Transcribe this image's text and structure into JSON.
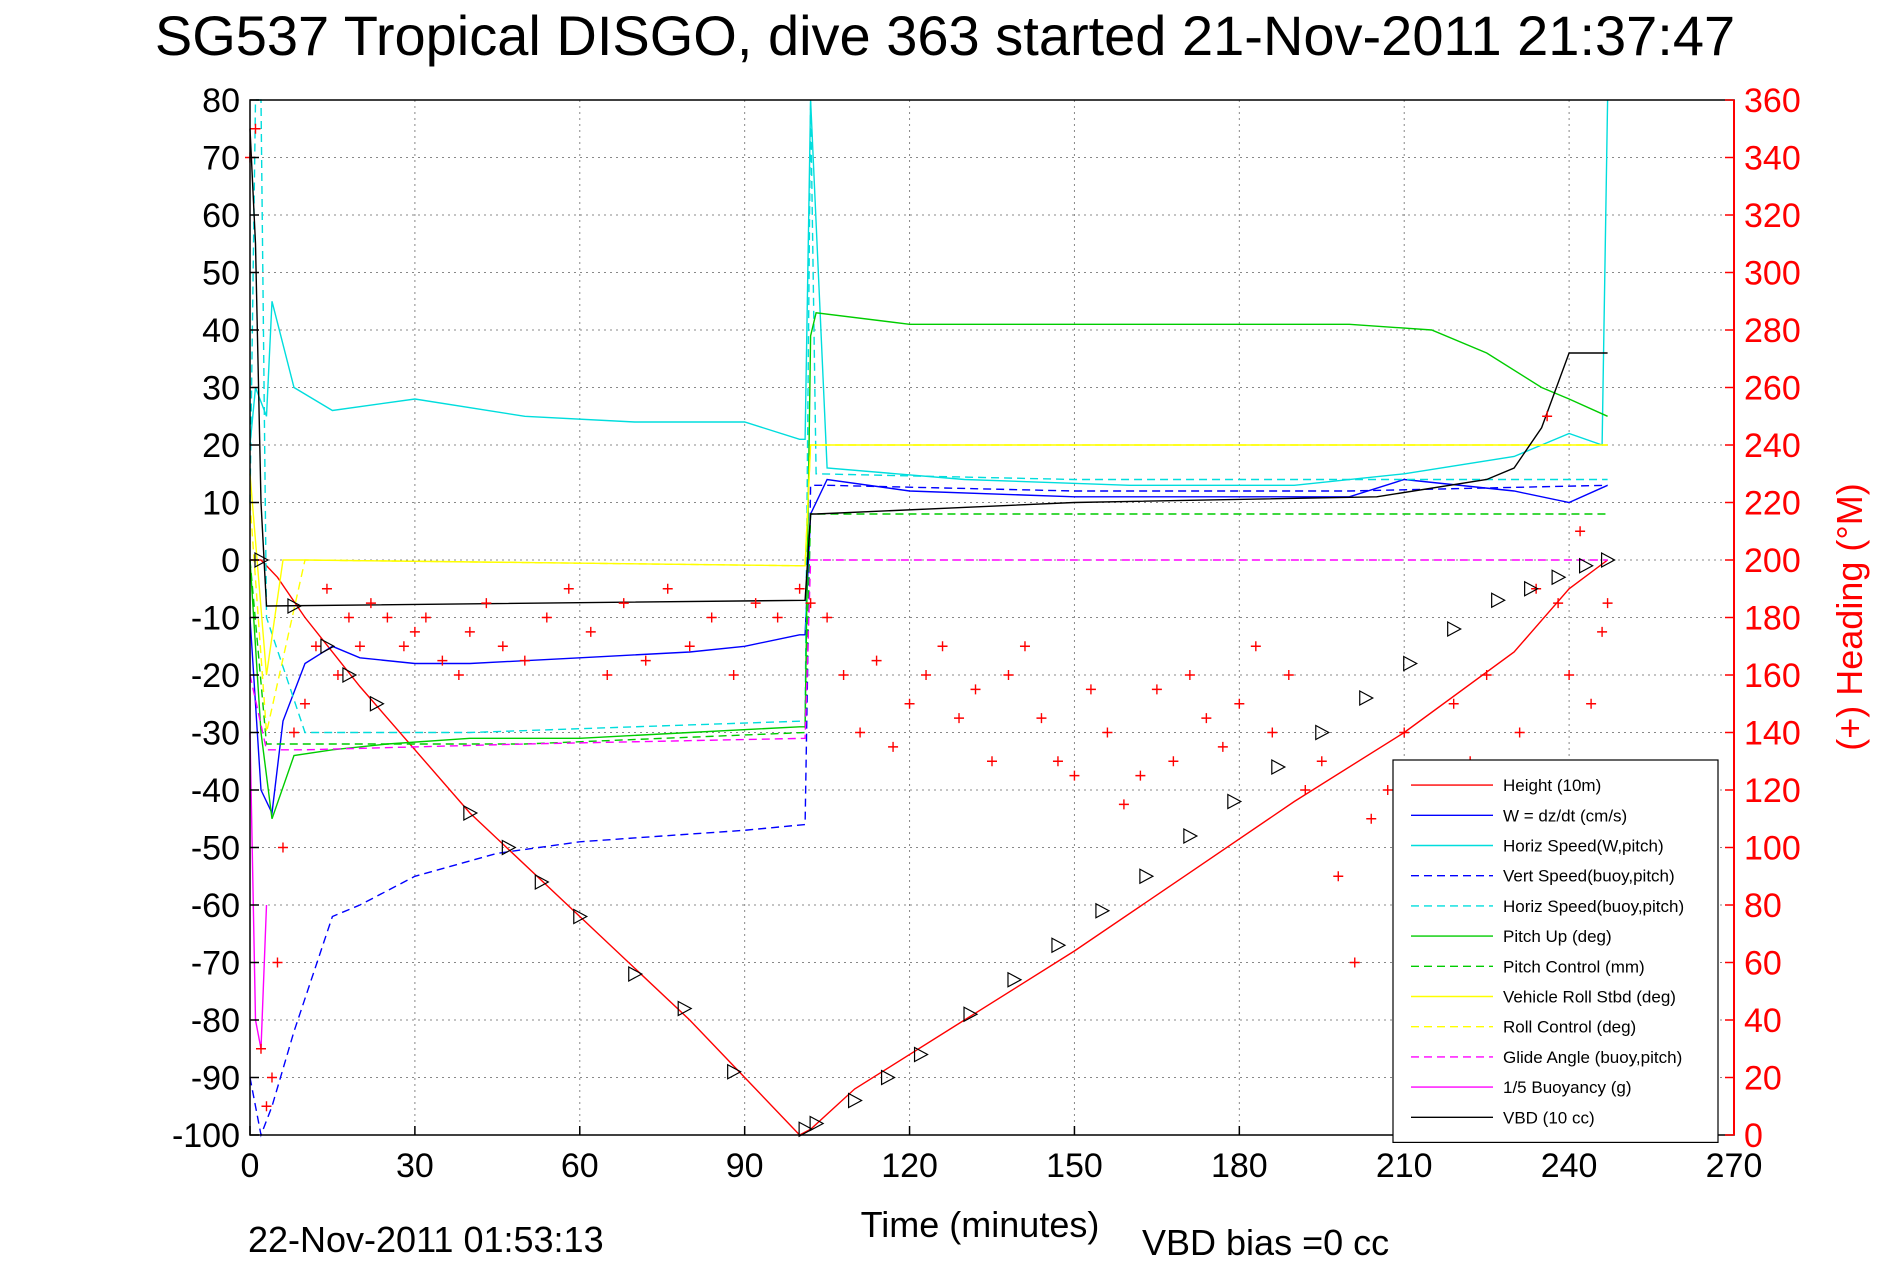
{
  "chart_data": {
    "type": "line",
    "title": "SG537 Tropical DISGO, dive 363 started 21-Nov-2011 21:37:47",
    "xlabel": "Time (minutes)",
    "ylabel": "",
    "y2label": "(+) Heading (°M)",
    "xlim": [
      0,
      270
    ],
    "ylim": [
      -100,
      80
    ],
    "y2lim": [
      0,
      360
    ],
    "grid": true,
    "legend_position": "bottom-right",
    "x_ticks": [
      "0",
      "30",
      "60",
      "90",
      "120",
      "150",
      "180",
      "210",
      "240",
      "270"
    ],
    "y_ticks": [
      "80",
      "70",
      "60",
      "50",
      "40",
      "30",
      "20",
      "10",
      "0",
      "-10",
      "-20",
      "-30",
      "-40",
      "-50",
      "-60",
      "-70",
      "-80",
      "-90",
      "-100"
    ],
    "y2_ticks": [
      "360",
      "340",
      "320",
      "300",
      "280",
      "260",
      "240",
      "220",
      "200",
      "180",
      "160",
      "140",
      "120",
      "100",
      "80",
      "60",
      "40",
      "20",
      "0"
    ],
    "footer_left": "22-Nov-2011 01:53:13",
    "footer_right": "VBD bias =0 cc",
    "colors": {
      "height": "#ff0000",
      "w": "#0000ff",
      "horiz": "#00dddd",
      "pitch": "#00cc00",
      "roll": "#ffff00",
      "glide": "#ff00ff",
      "vbd": "#000000",
      "heading": "#ff0000",
      "right_axis": "#ff0000"
    },
    "series": [
      {
        "name": "Height (10m)",
        "style": "solid",
        "color": "#ff0000",
        "x": [
          0,
          2,
          5,
          10,
          20,
          40,
          60,
          80,
          90,
          100,
          102,
          110,
          130,
          150,
          170,
          190,
          210,
          230,
          240,
          247
        ],
        "y": [
          0,
          0,
          -3,
          -10,
          -22,
          -44,
          -62,
          -80,
          -90,
          -100,
          -99,
          -92,
          -80,
          -68,
          -55,
          -42,
          -30,
          -16,
          -5,
          0
        ]
      },
      {
        "name": "W = dz/dt (cm/s)",
        "style": "solid",
        "color": "#0000ff",
        "x": [
          0,
          2,
          4,
          6,
          10,
          15,
          20,
          30,
          40,
          60,
          80,
          90,
          100,
          101,
          102,
          105,
          120,
          150,
          180,
          200,
          210,
          230,
          240,
          247
        ],
        "y": [
          -10,
          -40,
          -44,
          -28,
          -18,
          -15,
          -17,
          -18,
          -18,
          -17,
          -16,
          -15,
          -13,
          -13,
          8,
          14,
          12,
          11,
          11,
          11,
          14,
          12,
          10,
          13
        ]
      },
      {
        "name": "Horiz Speed(W,pitch)",
        "style": "solid",
        "color": "#00dddd",
        "x": [
          0,
          1,
          3,
          4,
          8,
          15,
          30,
          50,
          70,
          90,
          100,
          101,
          102,
          105,
          130,
          160,
          190,
          210,
          230,
          240,
          246,
          247
        ],
        "y": [
          20,
          30,
          25,
          45,
          30,
          26,
          28,
          25,
          24,
          24,
          21,
          21,
          80,
          16,
          14,
          13,
          13,
          15,
          18,
          22,
          20,
          80
        ]
      },
      {
        "name": "Vert Speed(buoy,pitch)",
        "style": "dashed",
        "color": "#0000ff",
        "x": [
          0,
          2,
          4,
          8,
          15,
          20,
          30,
          45,
          60,
          75,
          90,
          101,
          102,
          105,
          150,
          200,
          247
        ],
        "y": [
          -90,
          -100,
          -95,
          -82,
          -62,
          -60,
          -55,
          -51,
          -49,
          -48,
          -47,
          -46,
          13,
          13,
          12,
          12,
          13
        ]
      },
      {
        "name": "Horiz Speed(buoy,pitch)",
        "style": "dashed",
        "color": "#00dddd",
        "x": [
          0,
          1,
          2,
          3,
          10,
          40,
          70,
          101,
          102,
          103,
          150,
          200,
          240,
          247
        ],
        "y": [
          10,
          80,
          80,
          -10,
          -30,
          -30,
          -29,
          -28,
          80,
          15,
          14,
          14,
          14,
          14
        ]
      },
      {
        "name": "Pitch Up (deg)",
        "style": "solid",
        "color": "#00cc00",
        "x": [
          0,
          2,
          4,
          8,
          15,
          25,
          40,
          60,
          80,
          100,
          101,
          102,
          103,
          120,
          150,
          180,
          200,
          215,
          225,
          235,
          240,
          247
        ],
        "y": [
          0,
          -30,
          -45,
          -34,
          -33,
          -32,
          -31,
          -31,
          -30,
          -29,
          -29,
          39,
          43,
          41,
          41,
          41,
          41,
          40,
          36,
          30,
          28,
          25
        ]
      },
      {
        "name": "Pitch Control (mm)",
        "style": "dashed",
        "color": "#00cc00",
        "x": [
          0,
          3,
          10,
          50,
          101,
          102,
          150,
          200,
          247
        ],
        "y": [
          0,
          -32,
          -32,
          -32,
          -30,
          8,
          8,
          8,
          8
        ]
      },
      {
        "name": "Vehicle Roll Stbd (deg)",
        "style": "solid",
        "color": "#ffff00",
        "x": [
          0,
          3,
          6,
          10,
          101,
          102,
          200,
          247
        ],
        "y": [
          15,
          -20,
          0,
          0,
          -1,
          20,
          20,
          20
        ]
      },
      {
        "name": "Roll Control (deg)",
        "style": "dashed",
        "color": "#ffff00",
        "x": [
          0,
          3,
          10,
          101,
          102,
          247
        ],
        "y": [
          10,
          -30,
          0,
          -1,
          20,
          20
        ]
      },
      {
        "name": "Glide Angle (buoy,pitch)",
        "style": "dashed",
        "color": "#ff00ff",
        "x": [
          0,
          3,
          10,
          50,
          101,
          102,
          247
        ],
        "y": [
          -20,
          -33,
          -33,
          -32,
          -31,
          0,
          0
        ]
      },
      {
        "name": "1/5 Buoyancy (g)",
        "style": "solid",
        "color": "#ff00ff",
        "x": [
          0,
          1,
          2,
          3
        ],
        "y": [
          -30,
          -80,
          -85,
          -60
        ]
      },
      {
        "name": "VBD (10 cc)",
        "style": "solid",
        "color": "#000000",
        "x": [
          0,
          1,
          2,
          3,
          101,
          102,
          103,
          150,
          205,
          225,
          230,
          235,
          240,
          247
        ],
        "y": [
          75,
          55,
          10,
          -8,
          -7,
          8,
          8,
          10,
          11,
          14,
          16,
          23,
          36,
          36
        ]
      }
    ],
    "heading": {
      "name": "(+) Heading",
      "axis": "right",
      "marker": "+",
      "color": "#ff0000",
      "x": [
        0,
        1,
        2,
        3,
        4,
        5,
        6,
        8,
        10,
        12,
        14,
        16,
        18,
        20,
        22,
        25,
        28,
        30,
        32,
        35,
        38,
        40,
        43,
        46,
        50,
        54,
        58,
        62,
        65,
        68,
        72,
        76,
        80,
        84,
        88,
        92,
        96,
        100,
        102,
        105,
        108,
        111,
        114,
        117,
        120,
        123,
        126,
        129,
        132,
        135,
        138,
        141,
        144,
        147,
        150,
        153,
        156,
        159,
        162,
        165,
        168,
        171,
        174,
        177,
        180,
        183,
        186,
        189,
        192,
        195,
        198,
        201,
        204,
        207,
        210,
        213,
        216,
        219,
        222,
        225,
        228,
        231,
        234,
        236,
        238,
        240,
        242,
        244,
        246,
        247
      ],
      "y": [
        340,
        350,
        30,
        10,
        20,
        60,
        100,
        140,
        150,
        170,
        190,
        160,
        180,
        170,
        185,
        180,
        170,
        175,
        180,
        165,
        160,
        175,
        185,
        170,
        165,
        180,
        190,
        175,
        160,
        185,
        165,
        190,
        170,
        180,
        160,
        185,
        180,
        190,
        185,
        180,
        160,
        140,
        165,
        135,
        150,
        160,
        170,
        145,
        155,
        130,
        160,
        170,
        145,
        130,
        125,
        155,
        140,
        115,
        125,
        155,
        130,
        160,
        145,
        135,
        150,
        170,
        140,
        160,
        120,
        130,
        90,
        60,
        110,
        120,
        140,
        100,
        110,
        150,
        130,
        160,
        120,
        140,
        190,
        250,
        185,
        160,
        210,
        150,
        175,
        185
      ]
    },
    "dive_markers": {
      "name": "Height markers",
      "marker": "triangle",
      "color": "#000000",
      "x": [
        2,
        8,
        14,
        18,
        23,
        40,
        47,
        53,
        60,
        70,
        79,
        88,
        101,
        103,
        110,
        116,
        122,
        131,
        139,
        147,
        155,
        163,
        171,
        179,
        187,
        195,
        203,
        211,
        219,
        227,
        233,
        238,
        243,
        247
      ],
      "y": [
        0,
        -8,
        -15,
        -20,
        -25,
        -44,
        -50,
        -56,
        -62,
        -72,
        -78,
        -89,
        -99,
        -98,
        -94,
        -90,
        -86,
        -79,
        -73,
        -67,
        -61,
        -55,
        -48,
        -42,
        -36,
        -30,
        -24,
        -18,
        -12,
        -7,
        -5,
        -3,
        -1,
        0
      ]
    }
  }
}
